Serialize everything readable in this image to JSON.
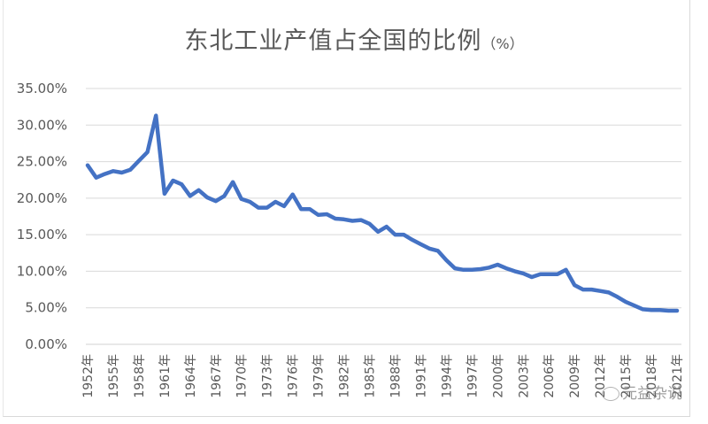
{
  "chart_data": {
    "type": "line",
    "title": "东北工业产值占全国的比例",
    "title_unit": "（%）",
    "xlabel": "",
    "ylabel": "",
    "ylim": [
      0,
      35
    ],
    "y_ticks": [
      "0.00%",
      "5.00%",
      "10.00%",
      "15.00%",
      "20.00%",
      "25.00%",
      "30.00%",
      "35.00%"
    ],
    "x_tick_labels": [
      "1952年",
      "1955年",
      "1958年",
      "1961年",
      "1964年",
      "1967年",
      "1970年",
      "1973年",
      "1976年",
      "1979年",
      "1982年",
      "1985年",
      "1988年",
      "1991年",
      "1994年",
      "1997年",
      "2000年",
      "2003年",
      "2006年",
      "2009年",
      "2012年",
      "2015年",
      "2018年",
      "2021年"
    ],
    "grid": "horizontal",
    "legend": "none",
    "line_color": "#4472C4",
    "x": [
      1952,
      1953,
      1954,
      1955,
      1956,
      1957,
      1958,
      1959,
      1960,
      1961,
      1962,
      1963,
      1964,
      1965,
      1966,
      1967,
      1968,
      1969,
      1970,
      1971,
      1972,
      1973,
      1974,
      1975,
      1976,
      1977,
      1978,
      1979,
      1980,
      1981,
      1982,
      1983,
      1984,
      1985,
      1986,
      1987,
      1988,
      1989,
      1990,
      1991,
      1992,
      1993,
      1994,
      1995,
      1996,
      1997,
      1998,
      1999,
      2000,
      2001,
      2002,
      2003,
      2004,
      2005,
      2006,
      2007,
      2008,
      2009,
      2010,
      2011,
      2012,
      2013,
      2014,
      2015,
      2016,
      2017,
      2018,
      2019,
      2020,
      2021
    ],
    "series": [
      {
        "name": "东北工业产值占全国的比例",
        "values": [
          24.5,
          22.8,
          23.3,
          23.7,
          23.5,
          23.9,
          25.1,
          26.3,
          31.3,
          20.6,
          22.4,
          21.9,
          20.3,
          21.1,
          20.1,
          19.6,
          20.3,
          22.2,
          19.9,
          19.5,
          18.7,
          18.7,
          19.5,
          18.9,
          20.5,
          18.5,
          18.5,
          17.7,
          17.8,
          17.2,
          17.1,
          16.9,
          17.0,
          16.5,
          15.4,
          16.1,
          15.0,
          15.0,
          14.3,
          13.7,
          13.1,
          12.8,
          11.5,
          10.4,
          10.2,
          10.2,
          10.3,
          10.5,
          10.9,
          10.4,
          10.0,
          9.7,
          9.2,
          9.6,
          9.6,
          9.6,
          10.2,
          8.1,
          7.5,
          7.5,
          7.3,
          7.1,
          6.5,
          5.8,
          5.3,
          4.8,
          4.7,
          4.7,
          4.6,
          4.6
        ]
      }
    ]
  },
  "watermark": {
    "text": "元益杂说"
  }
}
